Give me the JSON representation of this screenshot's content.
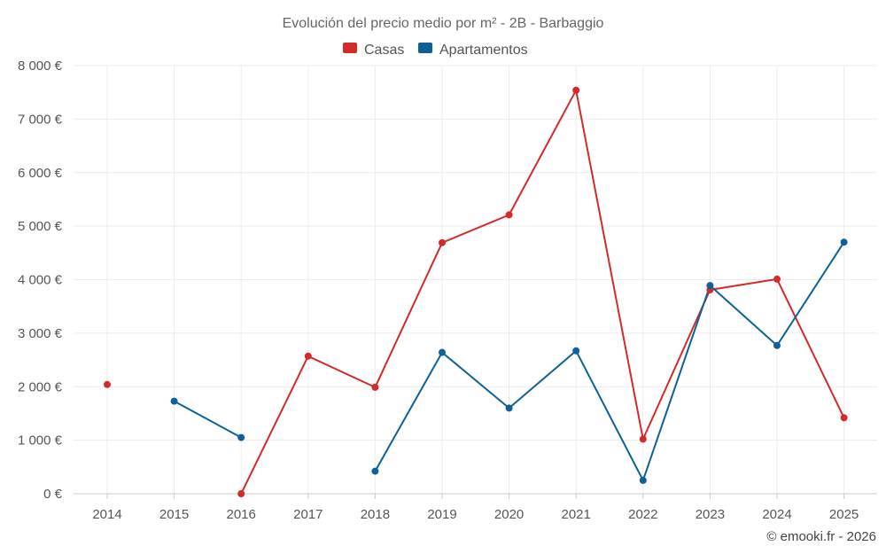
{
  "chart_data": {
    "type": "line",
    "title": "Evolución del precio medio por m² - 2B - Barbaggio",
    "xlabel": "",
    "ylabel": "",
    "categories": [
      "2014",
      "2015",
      "2016",
      "2017",
      "2018",
      "2019",
      "2020",
      "2021",
      "2022",
      "2023",
      "2024",
      "2025"
    ],
    "ylim": [
      0,
      8000
    ],
    "yticks": [
      0,
      1000,
      2000,
      3000,
      4000,
      5000,
      6000,
      7000,
      8000
    ],
    "ytick_labels": [
      "0 €",
      "1 000 €",
      "2 000 €",
      "3 000 €",
      "4 000 €",
      "5 000 €",
      "6 000 €",
      "7 000 €",
      "8 000 €"
    ],
    "grid": true,
    "legend_position": "top-center",
    "series": [
      {
        "name": "Casas",
        "color": "#d32a2a",
        "values": [
          2040,
          null,
          0,
          2570,
          1990,
          4690,
          5210,
          7540,
          1020,
          3810,
          4010,
          1420
        ]
      },
      {
        "name": "Apartamentos",
        "color": "#0e6196",
        "values": [
          null,
          1730,
          1050,
          null,
          420,
          2640,
          1600,
          2670,
          250,
          3890,
          2770,
          4700
        ]
      }
    ]
  },
  "credit": "© emooki.fr - 2026"
}
